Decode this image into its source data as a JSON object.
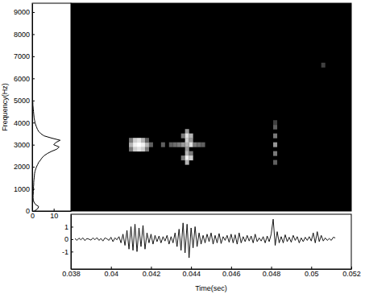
{
  "chart_data": [
    {
      "type": "heatmap",
      "xlim": [
        0.038,
        0.052
      ],
      "ylim": [
        0,
        9400
      ],
      "tick_labels": false,
      "cells": [
        {
          "x": 0.041,
          "y": 2800,
          "value": 0.4
        },
        {
          "x": 0.041,
          "y": 3000,
          "value": 0.6
        },
        {
          "x": 0.041,
          "y": 3200,
          "value": 0.4
        },
        {
          "x": 0.0412,
          "y": 2800,
          "value": 0.7
        },
        {
          "x": 0.0412,
          "y": 3000,
          "value": 0.9
        },
        {
          "x": 0.0412,
          "y": 3200,
          "value": 0.7
        },
        {
          "x": 0.0414,
          "y": 2800,
          "value": 0.8
        },
        {
          "x": 0.0414,
          "y": 3000,
          "value": 1.0
        },
        {
          "x": 0.0414,
          "y": 3200,
          "value": 0.8
        },
        {
          "x": 0.0416,
          "y": 2800,
          "value": 0.7
        },
        {
          "x": 0.0416,
          "y": 3000,
          "value": 0.9
        },
        {
          "x": 0.0416,
          "y": 3200,
          "value": 0.6
        },
        {
          "x": 0.0418,
          "y": 2800,
          "value": 0.4
        },
        {
          "x": 0.0418,
          "y": 3000,
          "value": 0.6
        },
        {
          "x": 0.0418,
          "y": 3200,
          "value": 0.3
        },
        {
          "x": 0.042,
          "y": 3000,
          "value": 0.3
        },
        {
          "x": 0.0426,
          "y": 3000,
          "value": 0.3
        },
        {
          "x": 0.043,
          "y": 3000,
          "value": 0.3
        },
        {
          "x": 0.0432,
          "y": 3000,
          "value": 0.35
        },
        {
          "x": 0.0434,
          "y": 3000,
          "value": 0.4
        },
        {
          "x": 0.0436,
          "y": 3400,
          "value": 0.4
        },
        {
          "x": 0.0436,
          "y": 3000,
          "value": 0.5
        },
        {
          "x": 0.0436,
          "y": 2400,
          "value": 0.4
        },
        {
          "x": 0.0438,
          "y": 3600,
          "value": 0.5
        },
        {
          "x": 0.0438,
          "y": 3400,
          "value": 0.8
        },
        {
          "x": 0.0438,
          "y": 3200,
          "value": 0.7
        },
        {
          "x": 0.0438,
          "y": 3000,
          "value": 0.6
        },
        {
          "x": 0.0438,
          "y": 2800,
          "value": 0.5
        },
        {
          "x": 0.0438,
          "y": 2600,
          "value": 0.6
        },
        {
          "x": 0.0438,
          "y": 2400,
          "value": 0.9
        },
        {
          "x": 0.0438,
          "y": 2200,
          "value": 0.6
        },
        {
          "x": 0.044,
          "y": 3400,
          "value": 0.6
        },
        {
          "x": 0.044,
          "y": 3200,
          "value": 0.5
        },
        {
          "x": 0.044,
          "y": 3000,
          "value": 0.8
        },
        {
          "x": 0.044,
          "y": 2600,
          "value": 0.4
        },
        {
          "x": 0.044,
          "y": 2400,
          "value": 0.7
        },
        {
          "x": 0.0442,
          "y": 3000,
          "value": 0.4
        },
        {
          "x": 0.0444,
          "y": 3000,
          "value": 0.35
        },
        {
          "x": 0.0446,
          "y": 3000,
          "value": 0.3
        },
        {
          "x": 0.0482,
          "y": 2200,
          "value": 0.3
        },
        {
          "x": 0.0482,
          "y": 2600,
          "value": 0.4
        },
        {
          "x": 0.0482,
          "y": 3000,
          "value": 0.5
        },
        {
          "x": 0.0482,
          "y": 3400,
          "value": 0.4
        },
        {
          "x": 0.0482,
          "y": 3800,
          "value": 0.3
        },
        {
          "x": 0.0482,
          "y": 4000,
          "value": 0.2
        },
        {
          "x": 0.0506,
          "y": 6600,
          "value": 0.2
        }
      ]
    },
    {
      "type": "line",
      "orientation": "horizontal",
      "ylabel": "Frequency(Hz)",
      "color": "#000000",
      "xlim": [
        0,
        18
      ],
      "xticks": [
        0,
        10
      ],
      "ylim": [
        0,
        9400
      ],
      "yticks": [
        0,
        1000,
        2000,
        3000,
        4000,
        5000,
        6000,
        7000,
        8000,
        9000
      ],
      "y": [
        0,
        100,
        200,
        300,
        400,
        500,
        600,
        700,
        800,
        900,
        1000,
        1100,
        1200,
        1300,
        1400,
        1500,
        1600,
        1700,
        1800,
        1900,
        2000,
        2100,
        2200,
        2300,
        2400,
        2500,
        2600,
        2700,
        2800,
        2900,
        3000,
        3100,
        3200,
        3300,
        3400,
        3500,
        3600,
        3700,
        3800,
        3900,
        4000,
        4100,
        4200,
        4300,
        4400,
        4500,
        4600,
        4700,
        4800,
        4900,
        5000
      ],
      "values": [
        1.0,
        2.5,
        3.0,
        1.5,
        0.8,
        0.5,
        0.4,
        0.4,
        0.5,
        0.5,
        0.6,
        0.6,
        0.7,
        0.7,
        0.8,
        0.9,
        1.0,
        1.1,
        1.3,
        1.6,
        2.0,
        2.5,
        3.0,
        3.8,
        4.5,
        5.5,
        7.0,
        9.0,
        11.5,
        12.5,
        10.0,
        11.0,
        13.0,
        9.0,
        5.5,
        4.0,
        3.0,
        2.4,
        2.0,
        1.6,
        1.3,
        1.1,
        0.9,
        0.8,
        0.7,
        0.6,
        0.5,
        0.4,
        0.3,
        0.3,
        0.2
      ]
    },
    {
      "type": "line",
      "xlabel": "Time(sec)",
      "color": "#000000",
      "xlim": [
        0.038,
        0.052
      ],
      "xticks": [
        0.038,
        0.04,
        0.042,
        0.044,
        0.046,
        0.048,
        0.05,
        0.052
      ],
      "ylim": [
        -2.4,
        2.0
      ],
      "yticks": [
        -1,
        0,
        1
      ],
      "x": [
        0.0382,
        0.0383,
        0.0384,
        0.0385,
        0.0386,
        0.0387,
        0.0388,
        0.0389,
        0.039,
        0.0391,
        0.0392,
        0.0393,
        0.0394,
        0.0395,
        0.0396,
        0.0397,
        0.0398,
        0.0399,
        0.04,
        0.0401,
        0.0402,
        0.0403,
        0.0404,
        0.0405,
        0.0406,
        0.0407,
        0.0408,
        0.0409,
        0.041,
        0.0411,
        0.0412,
        0.0413,
        0.0414,
        0.0415,
        0.0416,
        0.0417,
        0.0418,
        0.0419,
        0.042,
        0.0421,
        0.0422,
        0.0423,
        0.0424,
        0.0425,
        0.0426,
        0.0427,
        0.0428,
        0.0429,
        0.043,
        0.0431,
        0.0432,
        0.0433,
        0.0434,
        0.0435,
        0.0436,
        0.0437,
        0.0438,
        0.0439,
        0.044,
        0.0441,
        0.0442,
        0.0443,
        0.0444,
        0.0445,
        0.0446,
        0.0447,
        0.0448,
        0.0449,
        0.045,
        0.0451,
        0.0452,
        0.0453,
        0.0454,
        0.0455,
        0.0456,
        0.0457,
        0.0458,
        0.0459,
        0.046,
        0.0461,
        0.0462,
        0.0463,
        0.0464,
        0.0465,
        0.0466,
        0.0467,
        0.0468,
        0.0469,
        0.047,
        0.0471,
        0.0472,
        0.0473,
        0.0474,
        0.0475,
        0.0476,
        0.0477,
        0.0478,
        0.0479,
        0.048,
        0.0481,
        0.0482,
        0.0483,
        0.0484,
        0.0485,
        0.0486,
        0.0487,
        0.0488,
        0.0489,
        0.049,
        0.0491,
        0.0492,
        0.0493,
        0.0494,
        0.0495,
        0.0496,
        0.0497,
        0.0498,
        0.0499,
        0.05,
        0.0501,
        0.0502,
        0.0503,
        0.0504,
        0.0505,
        0.0506,
        0.0507,
        0.0508,
        0.0509,
        0.051,
        0.0511,
        0.0512
      ],
      "values": [
        0.05,
        -0.1,
        0.08,
        -0.05,
        0.1,
        -0.12,
        0.05,
        0.0,
        -0.08,
        0.1,
        -0.05,
        0.12,
        -0.1,
        0.05,
        -0.15,
        0.1,
        0.02,
        -0.1,
        0.15,
        -0.2,
        0.1,
        -0.05,
        0.2,
        -0.3,
        0.4,
        -0.5,
        0.7,
        -0.8,
        1.0,
        -0.9,
        1.2,
        -1.0,
        0.9,
        -0.6,
        1.1,
        -0.8,
        0.5,
        -0.3,
        0.4,
        -0.4,
        0.3,
        -0.2,
        0.25,
        -0.3,
        0.2,
        -0.15,
        0.3,
        -0.4,
        0.2,
        -0.3,
        0.5,
        -0.6,
        0.8,
        -0.9,
        1.3,
        -1.1,
        1.2,
        -1.5,
        0.9,
        -0.7,
        1.0,
        -0.6,
        0.5,
        -0.4,
        0.3,
        -0.3,
        0.4,
        -0.2,
        0.5,
        -0.4,
        0.3,
        -0.3,
        0.45,
        -0.35,
        0.2,
        -0.1,
        0.3,
        -0.25,
        0.4,
        -0.3,
        0.35,
        -0.4,
        0.5,
        -0.3,
        0.2,
        -0.2,
        0.3,
        -0.15,
        0.25,
        -0.3,
        0.4,
        -0.2,
        0.1,
        -0.15,
        0.2,
        -0.3,
        0.25,
        -0.2,
        0.4,
        1.6,
        -0.5,
        0.6,
        -0.3,
        0.2,
        -0.3,
        0.35,
        -0.2,
        0.15,
        -0.25,
        0.3,
        -0.1,
        0.2,
        -0.3,
        0.1,
        -0.2,
        0.15,
        -0.1,
        0.2,
        -0.15,
        0.5,
        -0.3,
        0.6,
        -0.2,
        0.3,
        -0.15,
        0.1,
        -0.1,
        0.05,
        -0.1,
        0.15,
        0.1
      ]
    }
  ]
}
